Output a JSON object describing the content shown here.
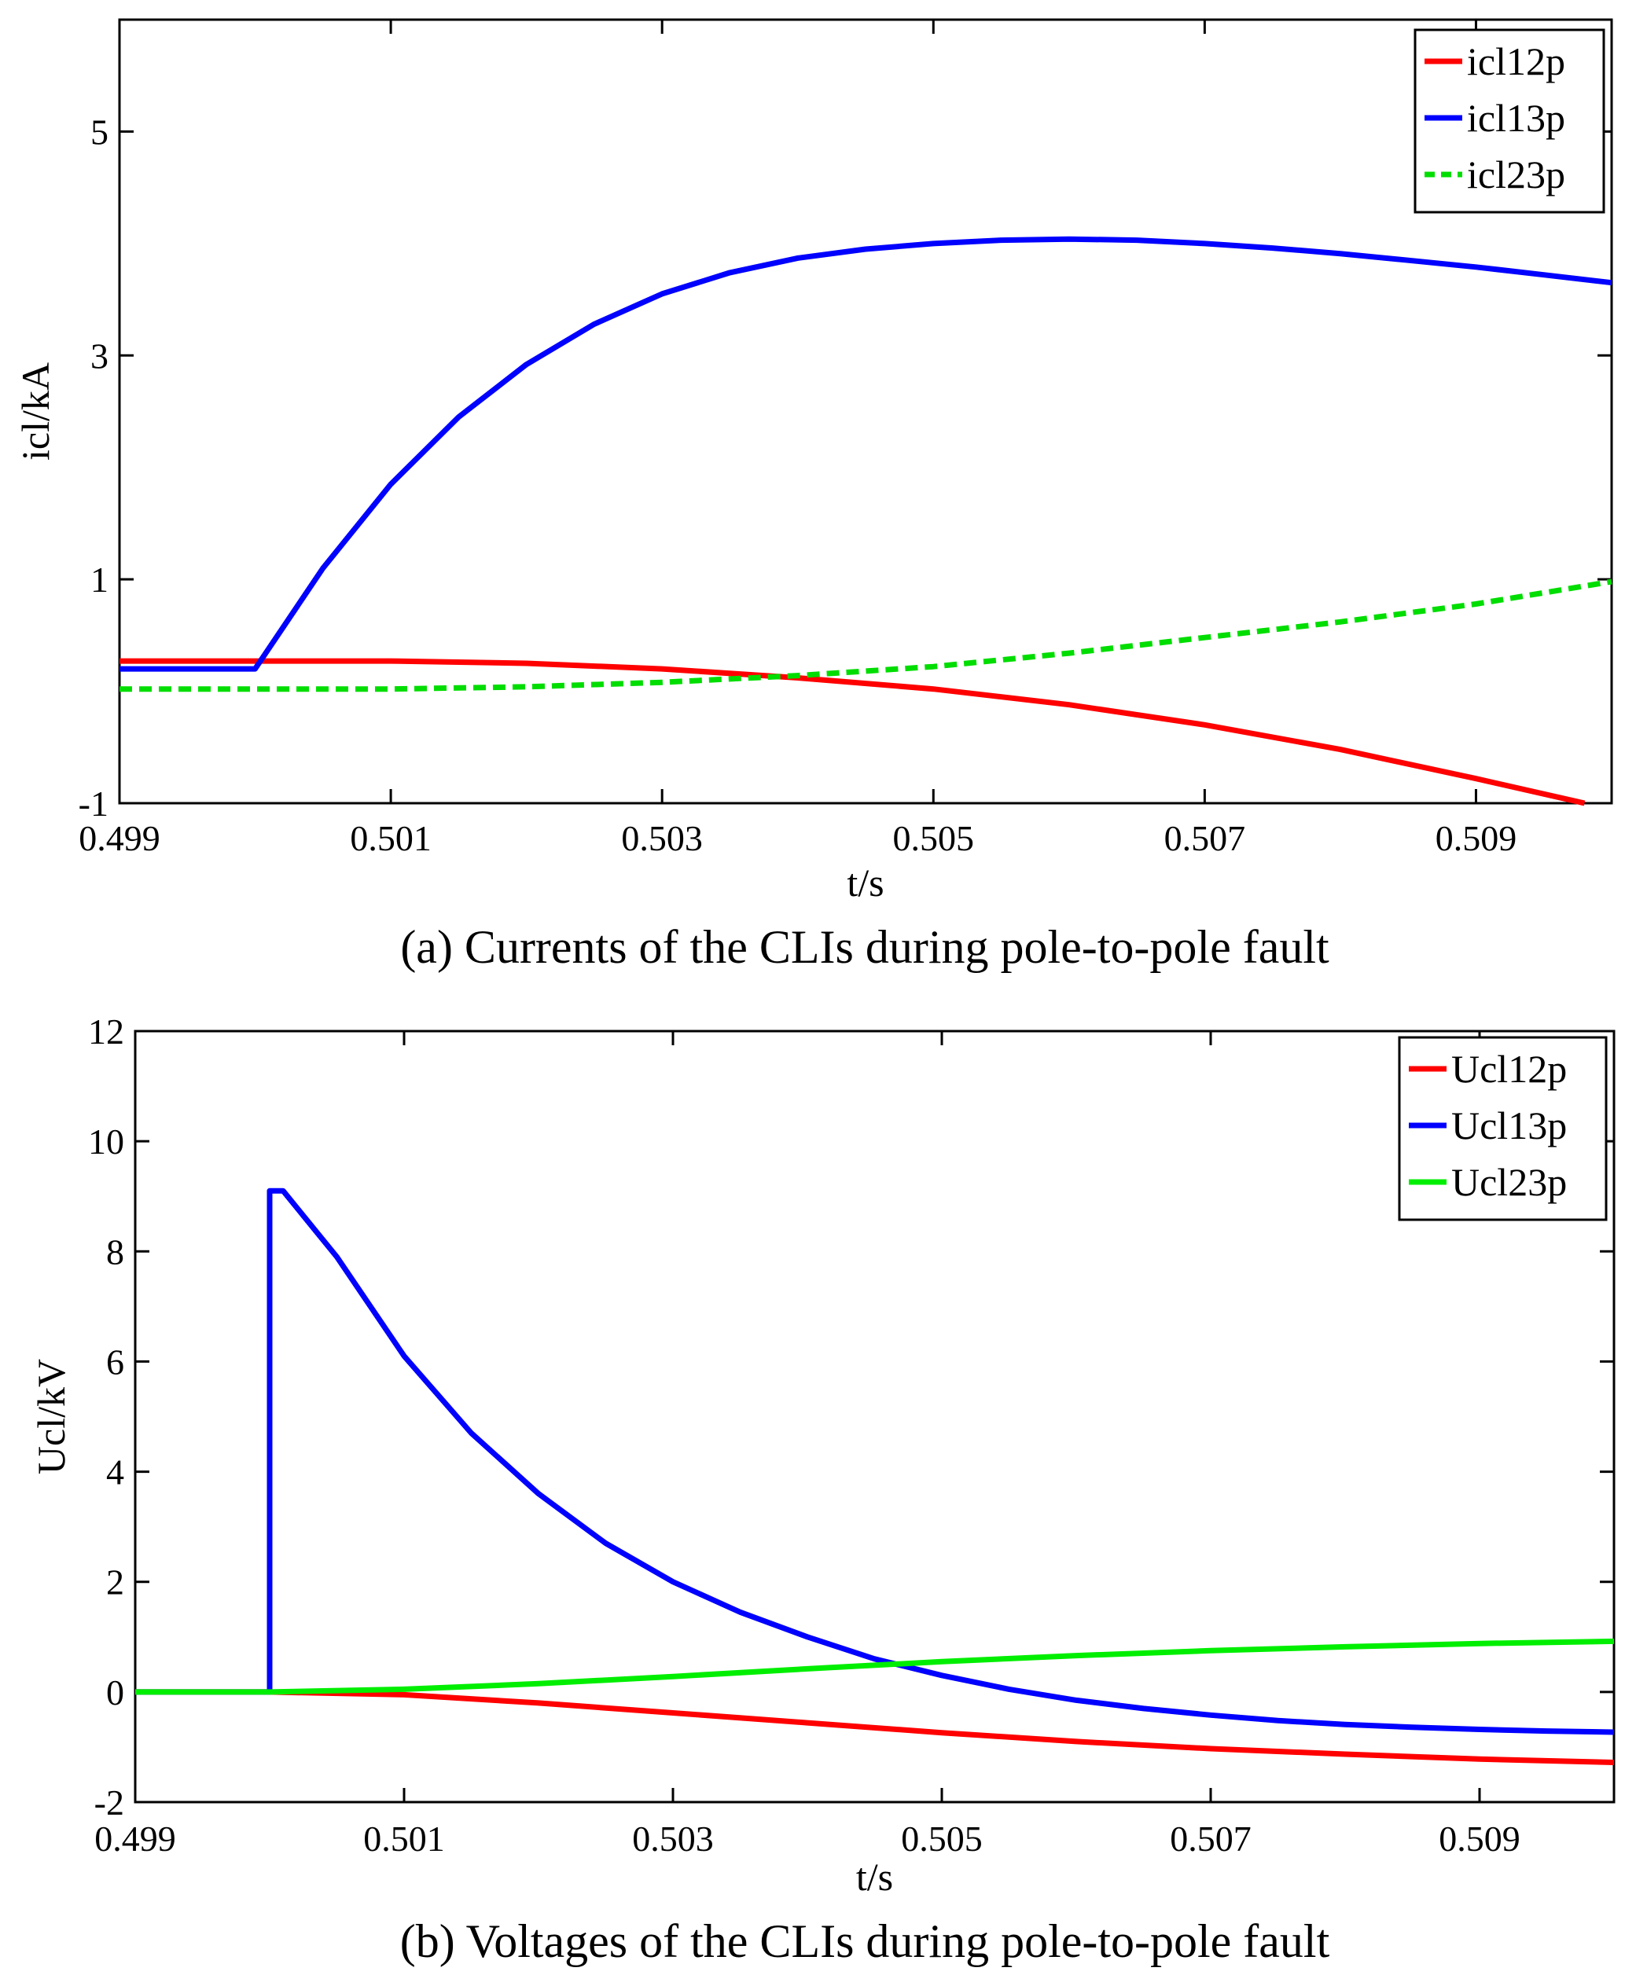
{
  "chart_data": [
    {
      "type": "line",
      "caption": "(a)  Currents of the CLIs during pole-to-pole fault",
      "xlabel": "t/s",
      "ylabel": "icl/kA",
      "xlim": [
        0.499,
        0.51
      ],
      "ylim": [
        -1,
        6
      ],
      "xticks": [
        0.499,
        0.501,
        0.503,
        0.505,
        0.507,
        0.509
      ],
      "xtick_labels": [
        "0.499",
        "0.501",
        "0.503",
        "0.505",
        "0.507",
        "0.509"
      ],
      "yticks": [
        -1,
        1,
        3,
        5
      ],
      "ytick_labels": [
        "-1",
        "1",
        "3",
        "5"
      ],
      "legend_position": "top-right",
      "series": [
        {
          "name": "icl12p",
          "color": "#ff0000",
          "dash": "solid",
          "x": [
            0.499,
            0.5,
            0.501,
            0.502,
            0.503,
            0.504,
            0.505,
            0.506,
            0.507,
            0.508,
            0.509,
            0.5098
          ],
          "y": [
            0.27,
            0.27,
            0.27,
            0.25,
            0.2,
            0.12,
            0.02,
            -0.12,
            -0.3,
            -0.52,
            -0.78,
            -1.0
          ]
        },
        {
          "name": "icl13p",
          "color": "#0000ff",
          "dash": "solid",
          "x": [
            0.499,
            0.5,
            0.5005,
            0.501,
            0.5015,
            0.502,
            0.5025,
            0.503,
            0.5035,
            0.504,
            0.5045,
            0.505,
            0.5055,
            0.506,
            0.5065,
            0.507,
            0.5075,
            0.508,
            0.5085,
            0.509,
            0.5095,
            0.51
          ],
          "y": [
            0.2,
            0.2,
            1.1,
            1.85,
            2.45,
            2.92,
            3.28,
            3.55,
            3.74,
            3.87,
            3.95,
            4.0,
            4.03,
            4.04,
            4.03,
            4.0,
            3.96,
            3.91,
            3.85,
            3.79,
            3.72,
            3.65
          ]
        },
        {
          "name": "icl23p",
          "color": "#00dd00",
          "dash": "dashed",
          "x": [
            0.499,
            0.5,
            0.501,
            0.502,
            0.503,
            0.504,
            0.505,
            0.506,
            0.507,
            0.508,
            0.509,
            0.51
          ],
          "y": [
            0.02,
            0.02,
            0.02,
            0.04,
            0.08,
            0.14,
            0.22,
            0.34,
            0.48,
            0.62,
            0.78,
            0.98
          ]
        }
      ]
    },
    {
      "type": "line",
      "caption": "(b)  Voltages of the CLIs during pole-to-pole fault",
      "xlabel": "t/s",
      "ylabel": "Ucl/kV",
      "xlim": [
        0.499,
        0.51
      ],
      "ylim": [
        -2,
        12
      ],
      "xticks": [
        0.499,
        0.501,
        0.503,
        0.505,
        0.507,
        0.509
      ],
      "xtick_labels": [
        "0.499",
        "0.501",
        "0.503",
        "0.505",
        "0.507",
        "0.509"
      ],
      "yticks": [
        -2,
        0,
        2,
        4,
        6,
        8,
        10,
        12
      ],
      "ytick_labels": [
        "-2",
        "0",
        "2",
        "4",
        "6",
        "8",
        "10",
        "12"
      ],
      "legend_position": "top-right",
      "series": [
        {
          "name": "Ucl12p",
          "color": "#ff0000",
          "dash": "solid",
          "x": [
            0.499,
            0.5,
            0.501,
            0.502,
            0.503,
            0.504,
            0.505,
            0.506,
            0.507,
            0.508,
            0.509,
            0.51
          ],
          "y": [
            0,
            0,
            -0.05,
            -0.2,
            -0.38,
            -0.56,
            -0.74,
            -0.9,
            -1.03,
            -1.13,
            -1.22,
            -1.28
          ]
        },
        {
          "name": "Ucl13p",
          "color": "#0000ff",
          "dash": "solid",
          "x": [
            0.499,
            0.5,
            0.5,
            0.5001,
            0.5005,
            0.501,
            0.5015,
            0.502,
            0.5025,
            0.503,
            0.5035,
            0.504,
            0.5045,
            0.505,
            0.5055,
            0.506,
            0.5065,
            0.507,
            0.5075,
            0.508,
            0.5085,
            0.509,
            0.5095,
            0.51
          ],
          "y": [
            0,
            0,
            9.1,
            9.1,
            7.9,
            6.1,
            4.7,
            3.6,
            2.7,
            2.0,
            1.45,
            1.0,
            0.6,
            0.3,
            0.05,
            -0.15,
            -0.3,
            -0.42,
            -0.52,
            -0.59,
            -0.64,
            -0.68,
            -0.71,
            -0.73
          ]
        },
        {
          "name": "Ucl23p",
          "color": "#00ee00",
          "dash": "solid",
          "x": [
            0.499,
            0.5,
            0.501,
            0.502,
            0.503,
            0.504,
            0.505,
            0.506,
            0.507,
            0.508,
            0.509,
            0.51
          ],
          "y": [
            0,
            0,
            0.05,
            0.15,
            0.28,
            0.42,
            0.55,
            0.66,
            0.75,
            0.82,
            0.88,
            0.92
          ]
        }
      ]
    }
  ]
}
